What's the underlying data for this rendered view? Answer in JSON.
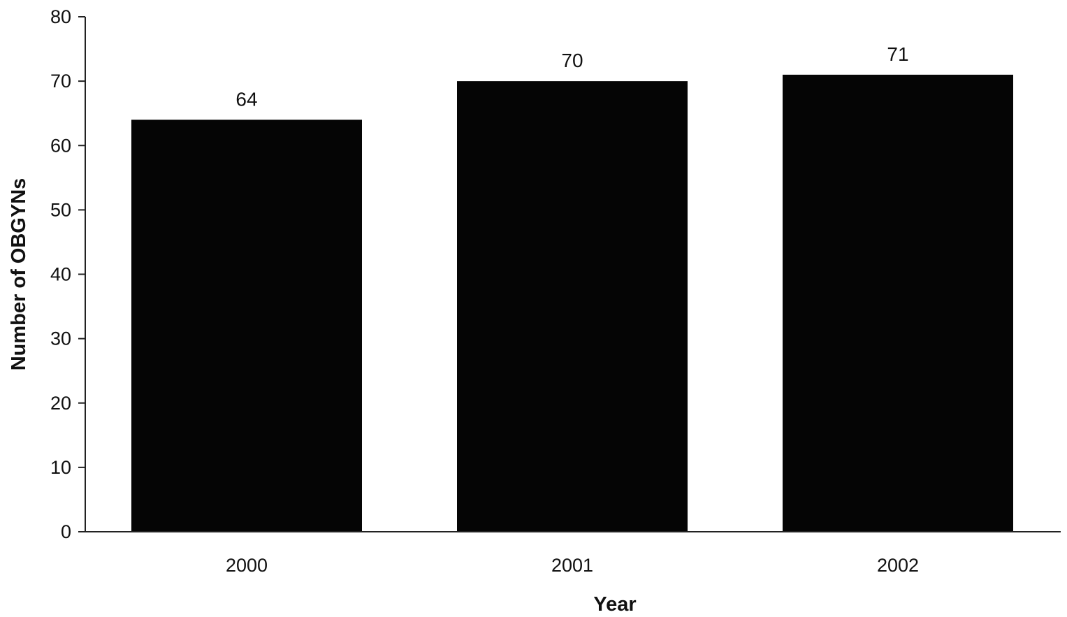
{
  "chart_data": {
    "type": "bar",
    "categories": [
      "2000",
      "2001",
      "2002"
    ],
    "values": [
      64,
      70,
      71
    ],
    "data_labels": [
      "64",
      "70",
      "71"
    ],
    "title": "",
    "xlabel": "Year",
    "ylabel": "Number of OBGYNs",
    "ylim": [
      0,
      80
    ],
    "yticks": [
      0,
      10,
      20,
      30,
      40,
      50,
      60,
      70,
      80
    ],
    "grid": false,
    "legend": "none",
    "bar_color": "#050505",
    "axis_color": "#222222"
  }
}
